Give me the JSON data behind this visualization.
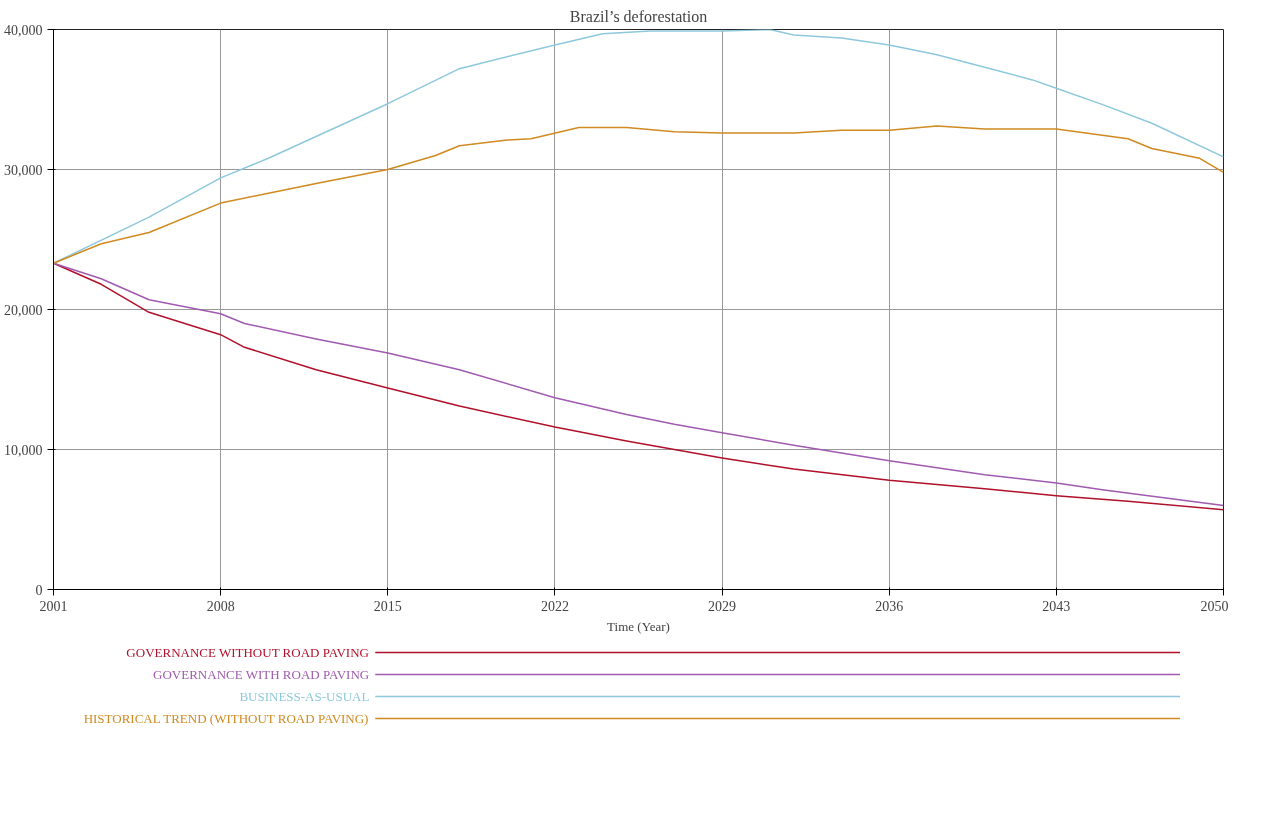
{
  "chart_data": {
    "type": "line",
    "title": "Brazil’s deforestation",
    "xlabel": "Time (Year)",
    "xlim": [
      2001,
      2050
    ],
    "xticks": [
      2001,
      2008,
      2015,
      2022,
      2029,
      2036,
      2043,
      2050
    ],
    "ylim": [
      0,
      40000
    ],
    "yticks": [
      0,
      {
        "value": 10000,
        "label": "10,000"
      },
      {
        "value": 20000,
        "label": "20,000"
      },
      {
        "value": 30000,
        "label": "30,000"
      },
      {
        "value": 40000,
        "label": "40,000"
      }
    ],
    "grid": true,
    "legend": "bottom",
    "line_style": "solid",
    "marker": "none",
    "series": [
      {
        "name": "GOVERNANCE WITHOUT ROAD PAVING",
        "color": "#b0102a",
        "x": [
          2001,
          2003,
          2005,
          2008,
          2009,
          2012,
          2015,
          2018,
          2022,
          2025,
          2027,
          2029,
          2032,
          2036,
          2040,
          2043,
          2046,
          2050
        ],
        "values": [
          23300,
          21800,
          19800,
          18200,
          17300,
          15700,
          14400,
          13100,
          11600,
          10600,
          10000,
          9400,
          8600,
          7800,
          7200,
          6700,
          6300,
          5700
        ]
      },
      {
        "name": "GOVERNANCE WITH ROAD PAVING",
        "color": "#a05ab0",
        "x": [
          2001,
          2003,
          2005,
          2008,
          2009,
          2012,
          2015,
          2018,
          2022,
          2025,
          2027,
          2029,
          2032,
          2036,
          2040,
          2043,
          2045,
          2050
        ],
        "values": [
          23300,
          22200,
          20700,
          19700,
          19000,
          17900,
          16900,
          15700,
          13700,
          12500,
          11800,
          11200,
          10300,
          9200,
          8200,
          7600,
          7100,
          6000
        ]
      },
      {
        "name": "BUSINESS-AS-USUAL",
        "color": "#8ec8dc",
        "x": [
          2001,
          2005,
          2008,
          2010,
          2015,
          2018,
          2022,
          2024,
          2026,
          2029,
          2031,
          2032,
          2034,
          2036,
          2038,
          2040,
          2042,
          2043,
          2045,
          2047,
          2050
        ],
        "values": [
          23300,
          26600,
          29400,
          30800,
          34700,
          37200,
          38900,
          39700,
          39900,
          39900,
          40000,
          39600,
          39400,
          38900,
          38200,
          37300,
          36400,
          35800,
          34600,
          33300,
          30900
        ]
      },
      {
        "name": "HISTORICAL TREND (WITHOUT ROAD PAVING)",
        "color": "#d08a20",
        "x": [
          2001,
          2003,
          2005,
          2008,
          2010,
          2012,
          2015,
          2017,
          2018,
          2020,
          2021,
          2023,
          2025,
          2027,
          2029,
          2032,
          2034,
          2036,
          2038,
          2040,
          2043,
          2046,
          2047,
          2049,
          2050
        ],
        "values": [
          23300,
          24700,
          25500,
          27600,
          28300,
          29000,
          30000,
          31000,
          31700,
          32100,
          32200,
          33000,
          33000,
          32700,
          32600,
          32600,
          32800,
          32800,
          33100,
          32900,
          32900,
          32200,
          31500,
          30800,
          29800
        ]
      }
    ]
  }
}
